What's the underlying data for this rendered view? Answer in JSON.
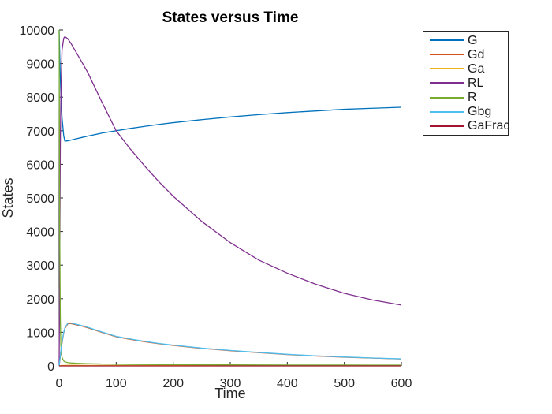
{
  "figure": {
    "background": "#ffffff",
    "axis_color": "#262626",
    "tick_label_color": "#262626",
    "title_color": "#000000"
  },
  "chart_data": {
    "type": "line",
    "title": "States versus Time",
    "xlabel": "Time",
    "ylabel": "States",
    "xlim": [
      0,
      600
    ],
    "ylim": [
      0,
      10000
    ],
    "xticks": [
      0,
      100,
      200,
      300,
      400,
      500,
      600
    ],
    "yticks": [
      0,
      1000,
      2000,
      3000,
      4000,
      5000,
      6000,
      7000,
      8000,
      9000,
      10000
    ],
    "grid": false,
    "box": false,
    "tick_direction": "in",
    "legend_position": "outside-top-right",
    "x": [
      0,
      1,
      2,
      3,
      5,
      8,
      10,
      15,
      20,
      30,
      40,
      50,
      75,
      100,
      125,
      150,
      175,
      200,
      250,
      300,
      350,
      400,
      450,
      500,
      550,
      600
    ],
    "series": [
      {
        "name": "G",
        "color": "#0072BD",
        "values": [
          10000,
          9300,
          8600,
          8100,
          7400,
          6850,
          6690,
          6700,
          6720,
          6760,
          6800,
          6840,
          6930,
          7000,
          7070,
          7130,
          7190,
          7240,
          7330,
          7410,
          7480,
          7540,
          7590,
          7640,
          7670,
          7700
        ]
      },
      {
        "name": "Gd",
        "color": "#D95319",
        "values": [
          0,
          140,
          280,
          430,
          680,
          980,
          1110,
          1250,
          1262,
          1224,
          1185,
          1136,
          997,
          868,
          789,
          719,
          660,
          611,
          522,
          452,
          393,
          339,
          295,
          260,
          231,
          206
        ]
      },
      {
        "name": "Ga",
        "color": "#EDB120",
        "values": [
          0,
          4,
          7,
          9,
          12,
          14,
          15,
          16,
          16,
          16,
          15,
          15,
          13,
          12,
          11,
          10,
          10,
          9,
          8,
          7,
          6,
          6,
          5,
          5,
          4,
          4
        ]
      },
      {
        "name": "RL",
        "color": "#7E2F8E",
        "values": [
          0,
          3000,
          6500,
          8000,
          9400,
          9750,
          9800,
          9740,
          9620,
          9330,
          9040,
          8740,
          7850,
          7000,
          6450,
          5950,
          5480,
          5050,
          4300,
          3670,
          3150,
          2760,
          2430,
          2160,
          1960,
          1810
        ]
      },
      {
        "name": "R",
        "color": "#77AC30",
        "values": [
          10000,
          4000,
          1500,
          600,
          250,
          150,
          120,
          100,
          90,
          80,
          72,
          66,
          56,
          50,
          46,
          43,
          40,
          38,
          34,
          31,
          29,
          27,
          26,
          25,
          24,
          23
        ]
      },
      {
        "name": "Gbg",
        "color": "#4DBEEE",
        "values": [
          0,
          150,
          300,
          450,
          700,
          1000,
          1130,
          1270,
          1280,
          1240,
          1200,
          1150,
          1010,
          880,
          800,
          730,
          670,
          620,
          530,
          460,
          400,
          345,
          300,
          265,
          235,
          210
        ]
      },
      {
        "name": "GaFrac",
        "color": "#A2142F",
        "values": [
          0,
          0.1,
          0.2,
          0.2,
          0.3,
          0.3,
          0.3,
          0.3,
          0.3,
          0.3,
          0.3,
          0.3,
          0.4,
          0.4,
          0.4,
          0.4,
          0.4,
          0.4,
          0.5,
          0.5,
          0.5,
          0.5,
          0.5,
          0.5,
          0.5,
          0.5
        ]
      }
    ]
  }
}
